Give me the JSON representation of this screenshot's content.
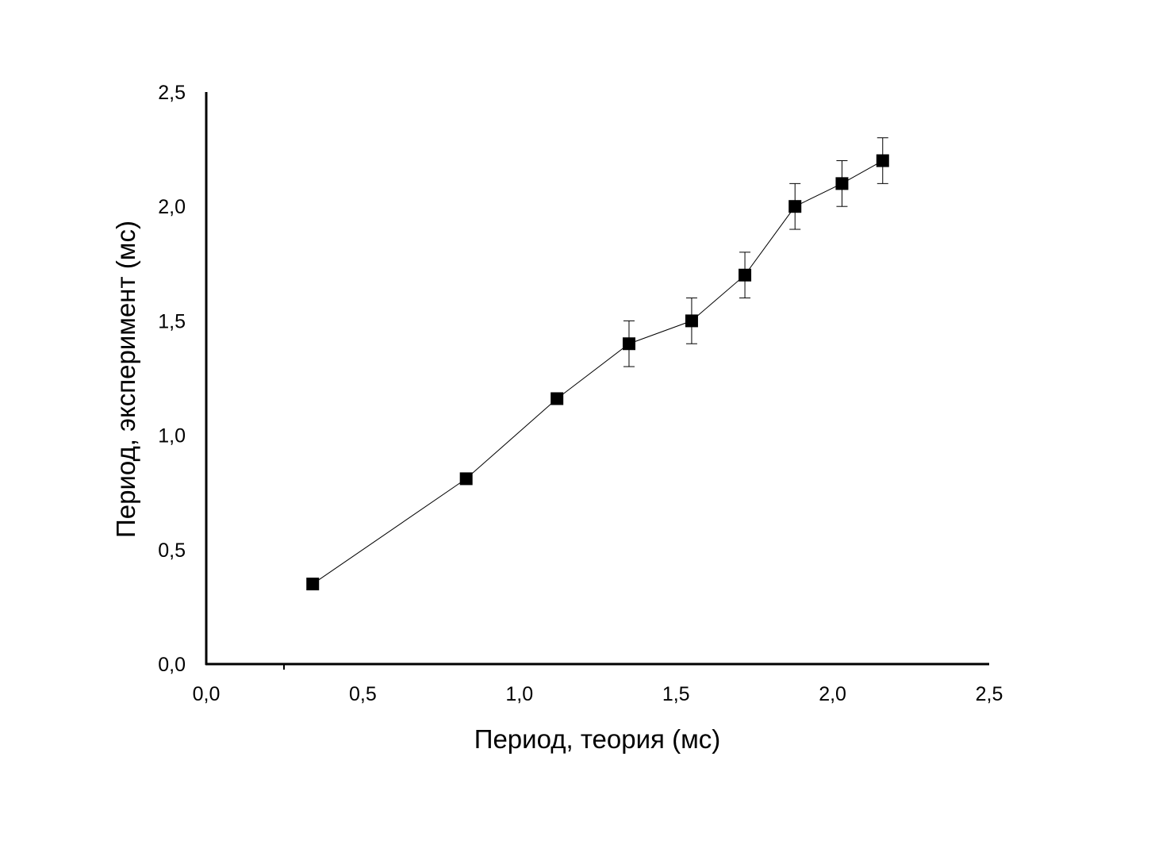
{
  "chart_data": {
    "type": "scatter",
    "title": "",
    "xlabel": "Период, теория (мс)",
    "ylabel": "Период, эксперимент (мс)",
    "xlim": [
      0,
      2.5
    ],
    "ylim": [
      0,
      2.5
    ],
    "xticks": [
      "0,0",
      "0,5",
      "1,0",
      "1,5",
      "2,0",
      "2,5"
    ],
    "yticks": [
      "0,0",
      "0,5",
      "1,0",
      "1,5",
      "2,0",
      "2,5"
    ],
    "grid": false,
    "marker": "square",
    "connected": true,
    "series": [
      {
        "points": [
          {
            "x": 0.34,
            "y": 0.35,
            "err": 0
          },
          {
            "x": 0.83,
            "y": 0.81,
            "err": 0
          },
          {
            "x": 1.12,
            "y": 1.16,
            "err": 0
          },
          {
            "x": 1.35,
            "y": 1.4,
            "err": 0.1
          },
          {
            "x": 1.55,
            "y": 1.5,
            "err": 0.1
          },
          {
            "x": 1.72,
            "y": 1.7,
            "err": 0.1
          },
          {
            "x": 1.88,
            "y": 2.0,
            "err": 0.1
          },
          {
            "x": 2.03,
            "y": 2.1,
            "err": 0.1
          },
          {
            "x": 2.16,
            "y": 2.2,
            "err": 0.1
          }
        ]
      }
    ]
  }
}
